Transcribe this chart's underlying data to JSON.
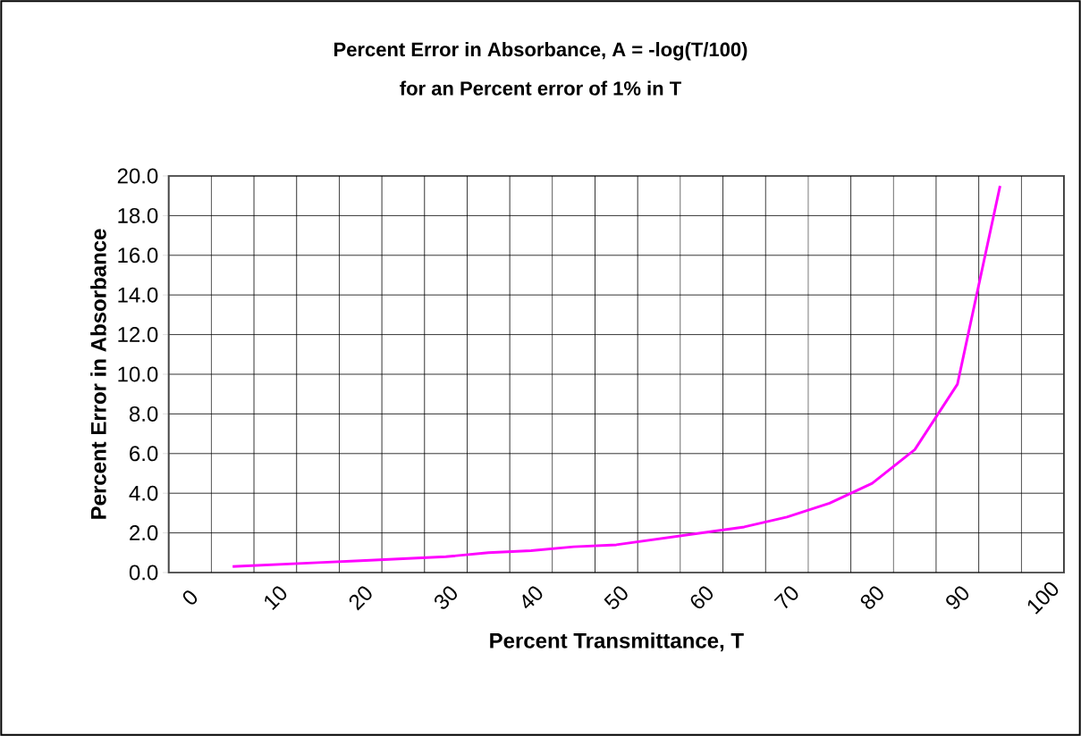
{
  "chart_data": {
    "type": "line",
    "title": "Percent Error in Absorbance, A = -log(T/100)",
    "subtitle": "for an Percent error of 1% in T",
    "xlabel": "Percent Transmittance, T",
    "ylabel": "Percent Error in Absorbance",
    "categories": [
      "0",
      null,
      "10",
      null,
      "20",
      null,
      "30",
      null,
      "40",
      null,
      "50",
      null,
      "60",
      null,
      "70",
      null,
      "80",
      null,
      "90",
      null,
      "100"
    ],
    "values": [
      null,
      0.3,
      0.4,
      0.5,
      0.6,
      0.7,
      0.8,
      1.0,
      1.1,
      1.3,
      1.4,
      1.7,
      2.0,
      2.3,
      2.8,
      3.5,
      4.5,
      6.2,
      9.5,
      19.5,
      null
    ],
    "color": "#ff00ff",
    "ylim": [
      0,
      20
    ],
    "yticks": [
      {
        "value": 0,
        "label": "0.0"
      },
      {
        "value": 2,
        "label": "2.0"
      },
      {
        "value": 4,
        "label": "4.0"
      },
      {
        "value": 6,
        "label": "6.0"
      },
      {
        "value": 8,
        "label": "8.0"
      },
      {
        "value": 10,
        "label": "10.0"
      },
      {
        "value": 12,
        "label": "12.0"
      },
      {
        "value": 14,
        "label": "14.0"
      },
      {
        "value": 16,
        "label": "16.0"
      },
      {
        "value": 18,
        "label": "18.0"
      },
      {
        "value": 20,
        "label": "20.0"
      }
    ],
    "grid": true
  }
}
